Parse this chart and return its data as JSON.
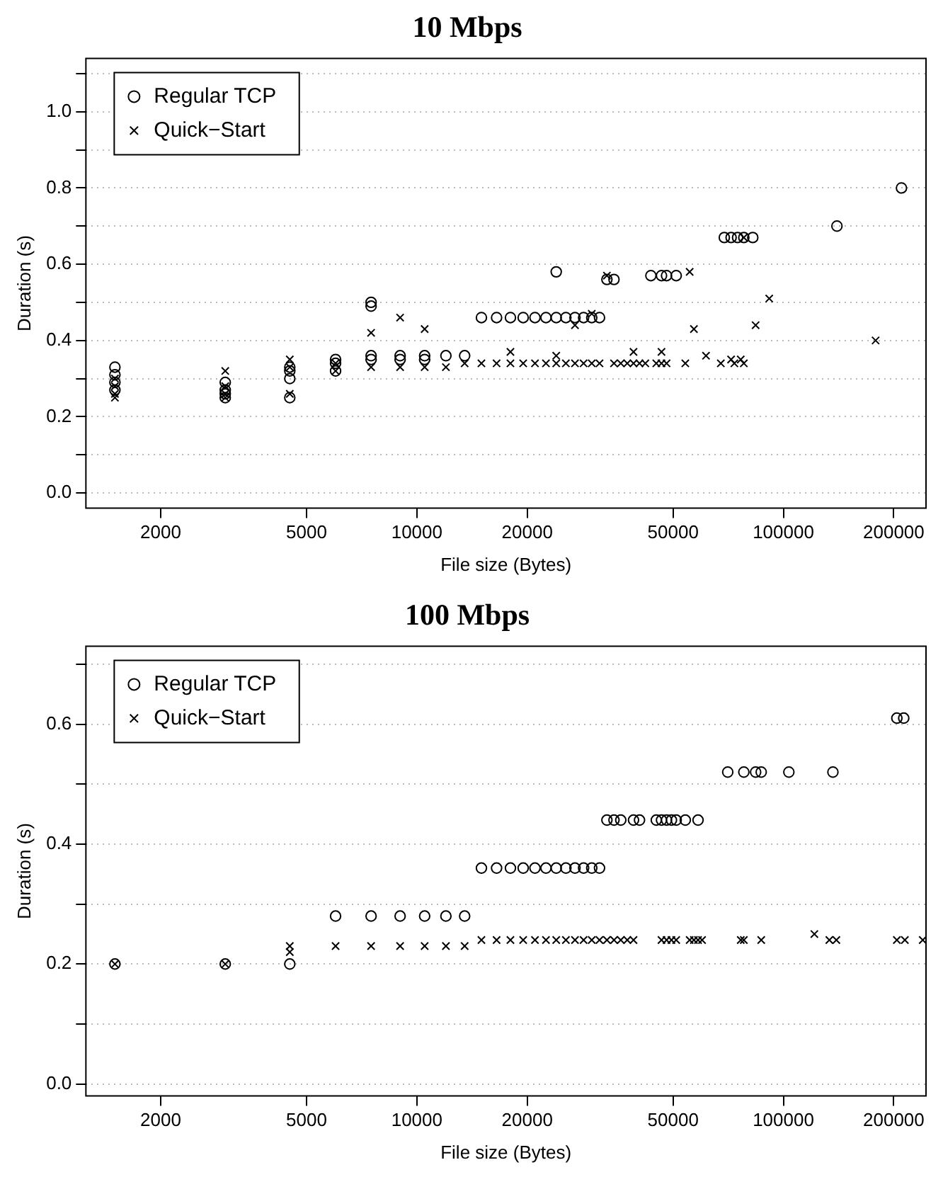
{
  "chart_data": [
    {
      "type": "scatter",
      "title": "10 Mbps",
      "xlabel": "File size (Bytes)",
      "ylabel": "Duration (s)",
      "log": "x",
      "grid": "y",
      "legend": "top left",
      "xlim": [
        1250,
        245000
      ],
      "xticks": [
        2000,
        5000,
        10000,
        20000,
        50000,
        100000,
        200000
      ],
      "ylim": [
        -0.04,
        1.14
      ],
      "yticks": [
        {
          "value": 0,
          "label": "0.0"
        },
        {
          "value": 0.1,
          "label": null
        },
        {
          "value": 0.2,
          "label": "0.2"
        },
        {
          "value": 0.3,
          "label": null
        },
        {
          "value": 0.4,
          "label": "0.4"
        },
        {
          "value": 0.5,
          "label": null
        },
        {
          "value": 0.6,
          "label": "0.6"
        },
        {
          "value": 0.7,
          "label": null
        },
        {
          "value": 0.8,
          "label": "0.8"
        },
        {
          "value": 0.9,
          "label": null
        },
        {
          "value": 1,
          "label": "1.0"
        },
        {
          "value": 1.1,
          "label": null
        }
      ],
      "series": [
        {
          "name": "Regular TCP",
          "color": "#000000",
          "marker": "circle",
          "x": [
            210000,
            1500,
            1500,
            1500,
            1500,
            3000,
            3000,
            3000,
            3000,
            4500,
            4500,
            4500,
            4500,
            6000,
            6000,
            6000,
            7500,
            7500,
            7500,
            7500,
            9000,
            9000,
            10500,
            10500,
            12000,
            13500,
            15000,
            16500,
            18000,
            19500,
            21000,
            22500,
            24000,
            25500,
            27000,
            28500,
            30000,
            31500,
            24000,
            33000,
            34500,
            43500,
            46500,
            48000,
            51000,
            69000,
            72000,
            75000,
            78000,
            82500,
            140000
          ],
          "values": [
            0.8,
            0.27,
            0.29,
            0.31,
            0.33,
            0.25,
            0.26,
            0.27,
            0.29,
            0.25,
            0.3,
            0.32,
            0.33,
            0.32,
            0.34,
            0.35,
            0.5,
            0.49,
            0.35,
            0.36,
            0.35,
            0.36,
            0.35,
            0.36,
            0.36,
            0.36,
            0.46,
            0.46,
            0.46,
            0.46,
            0.46,
            0.46,
            0.46,
            0.46,
            0.46,
            0.46,
            0.46,
            0.46,
            0.58,
            0.56,
            0.56,
            0.57,
            0.57,
            0.57,
            0.57,
            0.67,
            0.67,
            0.67,
            0.67,
            0.67,
            0.7
          ]
        },
        {
          "name": "Quick−Start",
          "color": "#000000",
          "marker": "cross",
          "x": [
            178500,
            1500,
            1500,
            1500,
            1500,
            3000,
            3000,
            3000,
            3000,
            4500,
            4500,
            4500,
            6000,
            6000,
            7500,
            7500,
            9000,
            9000,
            10500,
            10500,
            12000,
            13500,
            15000,
            16500,
            18000,
            19500,
            21000,
            22500,
            24000,
            25500,
            27000,
            28500,
            30000,
            31500,
            18000,
            24000,
            27000,
            30000,
            34500,
            36000,
            37500,
            39000,
            40500,
            42000,
            45000,
            46500,
            48000,
            54000,
            39000,
            46500,
            33000,
            55500,
            57000,
            61500,
            67500,
            72000,
            73500,
            76500,
            78000,
            78000,
            84000,
            91500
          ],
          "values": [
            0.4,
            0.25,
            0.26,
            0.28,
            0.3,
            0.25,
            0.26,
            0.28,
            0.32,
            0.26,
            0.33,
            0.35,
            0.32,
            0.34,
            0.33,
            0.42,
            0.33,
            0.46,
            0.33,
            0.43,
            0.33,
            0.34,
            0.34,
            0.34,
            0.34,
            0.34,
            0.34,
            0.34,
            0.34,
            0.34,
            0.34,
            0.34,
            0.34,
            0.34,
            0.37,
            0.36,
            0.44,
            0.47,
            0.34,
            0.34,
            0.34,
            0.34,
            0.34,
            0.34,
            0.34,
            0.34,
            0.34,
            0.34,
            0.37,
            0.37,
            0.57,
            0.58,
            0.43,
            0.36,
            0.34,
            0.35,
            0.34,
            0.35,
            0.34,
            0.67,
            0.44,
            0.51
          ]
        }
      ]
    },
    {
      "type": "scatter",
      "title": "100 Mbps",
      "xlabel": "File size (Bytes)",
      "ylabel": "Duration (s)",
      "log": "x",
      "grid": "y",
      "legend": "top left",
      "xlim": [
        1250,
        245000
      ],
      "xticks": [
        2000,
        5000,
        10000,
        20000,
        50000,
        100000,
        200000
      ],
      "ylim": [
        -0.02,
        0.73
      ],
      "yticks": [
        {
          "value": 0,
          "label": "0.0"
        },
        {
          "value": 0.1,
          "label": null
        },
        {
          "value": 0.2,
          "label": "0.2"
        },
        {
          "value": 0.3,
          "label": null
        },
        {
          "value": 0.4,
          "label": "0.4"
        },
        {
          "value": 0.5,
          "label": null
        },
        {
          "value": 0.6,
          "label": "0.6"
        },
        {
          "value": 0.7,
          "label": null
        }
      ],
      "series": [
        {
          "name": "Regular TCP",
          "color": "#000000",
          "marker": "circle",
          "x": [
            213000,
            1500,
            3000,
            4500,
            6000,
            7500,
            9000,
            10500,
            12000,
            13500,
            15000,
            16500,
            18000,
            19500,
            21000,
            22500,
            24000,
            25500,
            27000,
            28500,
            30000,
            31500,
            33000,
            34500,
            36000,
            39000,
            40500,
            45000,
            46500,
            48000,
            49500,
            51000,
            54000,
            58500,
            70500,
            78000,
            84000,
            87000,
            103500,
            136500,
            204000
          ],
          "values": [
            0.61,
            0.2,
            0.2,
            0.2,
            0.28,
            0.28,
            0.28,
            0.28,
            0.28,
            0.28,
            0.36,
            0.36,
            0.36,
            0.36,
            0.36,
            0.36,
            0.36,
            0.36,
            0.36,
            0.36,
            0.36,
            0.36,
            0.44,
            0.44,
            0.44,
            0.44,
            0.44,
            0.44,
            0.44,
            0.44,
            0.44,
            0.44,
            0.44,
            0.44,
            0.52,
            0.52,
            0.52,
            0.52,
            0.52,
            0.52,
            0.61
          ]
        },
        {
          "name": "Quick−Start",
          "color": "#000000",
          "marker": "cross",
          "x": [
            240000,
            1500,
            3000,
            4500,
            4500,
            6000,
            7500,
            9000,
            10500,
            12000,
            13500,
            15000,
            16500,
            18000,
            19500,
            21000,
            22500,
            24000,
            25500,
            27000,
            28500,
            30000,
            31500,
            33000,
            34500,
            36000,
            37500,
            39000,
            46500,
            48000,
            49500,
            51000,
            55500,
            57000,
            58500,
            60000,
            76500,
            78000,
            87000,
            121500,
            133500,
            139500,
            204000,
            214500
          ],
          "values": [
            0.24,
            0.2,
            0.2,
            0.23,
            0.22,
            0.23,
            0.23,
            0.23,
            0.23,
            0.23,
            0.23,
            0.24,
            0.24,
            0.24,
            0.24,
            0.24,
            0.24,
            0.24,
            0.24,
            0.24,
            0.24,
            0.24,
            0.24,
            0.24,
            0.24,
            0.24,
            0.24,
            0.24,
            0.24,
            0.24,
            0.24,
            0.24,
            0.24,
            0.24,
            0.24,
            0.24,
            0.24,
            0.24,
            0.24,
            0.25,
            0.24,
            0.24,
            0.24,
            0.24
          ]
        }
      ]
    }
  ]
}
